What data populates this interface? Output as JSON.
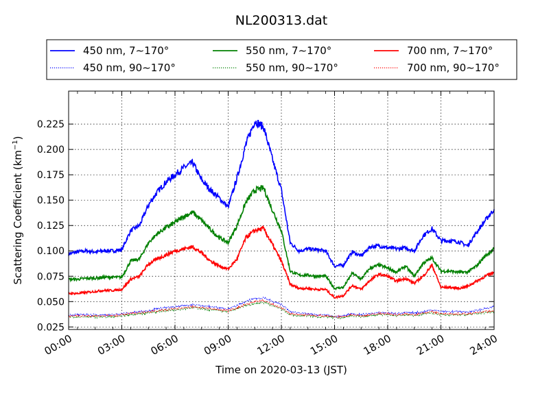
{
  "chart_data": {
    "type": "line",
    "title": "NL200313.dat",
    "xlabel": "Time on 2020-03-13 (JST)",
    "ylabel": "Scattering Coefficient (km",
    "ylabel_sup": "−1",
    "ylabel_close": ")",
    "xlim_hours": [
      0,
      24
    ],
    "ylim": [
      0.0225,
      0.2575
    ],
    "x_ticks": [
      {
        "hour": 0,
        "label": "00:00"
      },
      {
        "hour": 3,
        "label": "03:00"
      },
      {
        "hour": 6,
        "label": "06:00"
      },
      {
        "hour": 9,
        "label": "09:00"
      },
      {
        "hour": 12,
        "label": "12:00"
      },
      {
        "hour": 15,
        "label": "15:00"
      },
      {
        "hour": 18,
        "label": "18:00"
      },
      {
        "hour": 21,
        "label": "21:00"
      },
      {
        "hour": 24,
        "label": "24:00"
      }
    ],
    "y_ticks": [
      {
        "value": 0.025,
        "label": "0.025"
      },
      {
        "value": 0.05,
        "label": "0.050"
      },
      {
        "value": 0.075,
        "label": "0.075"
      },
      {
        "value": 0.1,
        "label": "0.100"
      },
      {
        "value": 0.125,
        "label": "0.125"
      },
      {
        "value": 0.15,
        "label": "0.150"
      },
      {
        "value": 0.175,
        "label": "0.175"
      },
      {
        "value": 0.2,
        "label": "0.200"
      },
      {
        "value": 0.225,
        "label": "0.225"
      }
    ],
    "grid": true,
    "legend_position": "top",
    "x": [
      0,
      0.5,
      1,
      1.5,
      2,
      2.5,
      3,
      3.5,
      4,
      4.5,
      5,
      5.5,
      6,
      6.5,
      7,
      7.5,
      8,
      8.5,
      9,
      9.5,
      10,
      10.5,
      11,
      11.5,
      12,
      12.5,
      13,
      13.5,
      14,
      14.5,
      15,
      15.5,
      16,
      16.5,
      17,
      17.5,
      18,
      18.5,
      19,
      19.5,
      20,
      20.5,
      21,
      21.5,
      22,
      22.5,
      23,
      23.5,
      24
    ],
    "series": [
      {
        "name": "450 nm, 7∼170°",
        "color": "#0000ff",
        "style": "solid",
        "values": [
          0.097,
          0.099,
          0.1,
          0.099,
          0.1,
          0.1,
          0.101,
          0.12,
          0.125,
          0.145,
          0.158,
          0.168,
          0.175,
          0.182,
          0.187,
          0.17,
          0.16,
          0.152,
          0.143,
          0.172,
          0.205,
          0.228,
          0.222,
          0.19,
          0.16,
          0.108,
          0.1,
          0.102,
          0.101,
          0.1,
          0.085,
          0.086,
          0.099,
          0.095,
          0.104,
          0.105,
          0.103,
          0.102,
          0.103,
          0.1,
          0.115,
          0.122,
          0.11,
          0.11,
          0.109,
          0.105,
          0.118,
          0.13,
          0.141
        ]
      },
      {
        "name": "550 nm, 7∼170°",
        "color": "#008000",
        "style": "solid",
        "values": [
          0.072,
          0.072,
          0.073,
          0.073,
          0.074,
          0.074,
          0.074,
          0.09,
          0.092,
          0.108,
          0.117,
          0.123,
          0.128,
          0.134,
          0.138,
          0.13,
          0.121,
          0.113,
          0.108,
          0.125,
          0.148,
          0.16,
          0.162,
          0.14,
          0.12,
          0.08,
          0.076,
          0.076,
          0.075,
          0.075,
          0.063,
          0.064,
          0.078,
          0.072,
          0.083,
          0.086,
          0.083,
          0.079,
          0.085,
          0.075,
          0.088,
          0.093,
          0.08,
          0.08,
          0.079,
          0.079,
          0.085,
          0.095,
          0.102
        ]
      },
      {
        "name": "700 nm, 7∼170°",
        "color": "#ff0000",
        "style": "solid",
        "values": [
          0.058,
          0.058,
          0.059,
          0.06,
          0.061,
          0.061,
          0.062,
          0.072,
          0.075,
          0.087,
          0.092,
          0.096,
          0.1,
          0.102,
          0.104,
          0.098,
          0.09,
          0.085,
          0.082,
          0.092,
          0.113,
          0.12,
          0.122,
          0.106,
          0.09,
          0.067,
          0.063,
          0.063,
          0.062,
          0.062,
          0.054,
          0.056,
          0.066,
          0.062,
          0.071,
          0.077,
          0.075,
          0.07,
          0.073,
          0.068,
          0.075,
          0.086,
          0.064,
          0.064,
          0.063,
          0.065,
          0.07,
          0.075,
          0.079
        ]
      },
      {
        "name": "450 nm, 90∼170°",
        "color": "#0000ff",
        "style": "dotted",
        "values": [
          0.037,
          0.037,
          0.037,
          0.037,
          0.037,
          0.037,
          0.038,
          0.039,
          0.04,
          0.041,
          0.043,
          0.044,
          0.045,
          0.046,
          0.047,
          0.046,
          0.045,
          0.044,
          0.043,
          0.046,
          0.05,
          0.053,
          0.054,
          0.05,
          0.047,
          0.04,
          0.039,
          0.038,
          0.037,
          0.037,
          0.035,
          0.036,
          0.038,
          0.037,
          0.038,
          0.039,
          0.039,
          0.038,
          0.039,
          0.039,
          0.04,
          0.042,
          0.04,
          0.04,
          0.04,
          0.04,
          0.041,
          0.043,
          0.045
        ]
      },
      {
        "name": "550 nm, 90∼170°",
        "color": "#008000",
        "style": "dotted",
        "values": [
          0.035,
          0.035,
          0.035,
          0.035,
          0.035,
          0.035,
          0.036,
          0.037,
          0.038,
          0.039,
          0.04,
          0.041,
          0.042,
          0.043,
          0.044,
          0.043,
          0.042,
          0.041,
          0.04,
          0.043,
          0.046,
          0.048,
          0.049,
          0.046,
          0.043,
          0.037,
          0.036,
          0.036,
          0.035,
          0.035,
          0.034,
          0.034,
          0.036,
          0.035,
          0.036,
          0.037,
          0.037,
          0.036,
          0.037,
          0.036,
          0.038,
          0.039,
          0.037,
          0.037,
          0.037,
          0.037,
          0.038,
          0.039,
          0.04
        ]
      },
      {
        "name": "700 nm, 90∼170°",
        "color": "#ff0000",
        "style": "dotted",
        "values": [
          0.036,
          0.036,
          0.036,
          0.036,
          0.036,
          0.036,
          0.037,
          0.038,
          0.039,
          0.04,
          0.041,
          0.042,
          0.043,
          0.044,
          0.045,
          0.044,
          0.043,
          0.042,
          0.041,
          0.044,
          0.047,
          0.05,
          0.051,
          0.047,
          0.044,
          0.038,
          0.037,
          0.037,
          0.036,
          0.036,
          0.035,
          0.035,
          0.037,
          0.036,
          0.037,
          0.038,
          0.038,
          0.037,
          0.038,
          0.037,
          0.039,
          0.04,
          0.038,
          0.038,
          0.038,
          0.038,
          0.039,
          0.04,
          0.041
        ]
      }
    ]
  }
}
